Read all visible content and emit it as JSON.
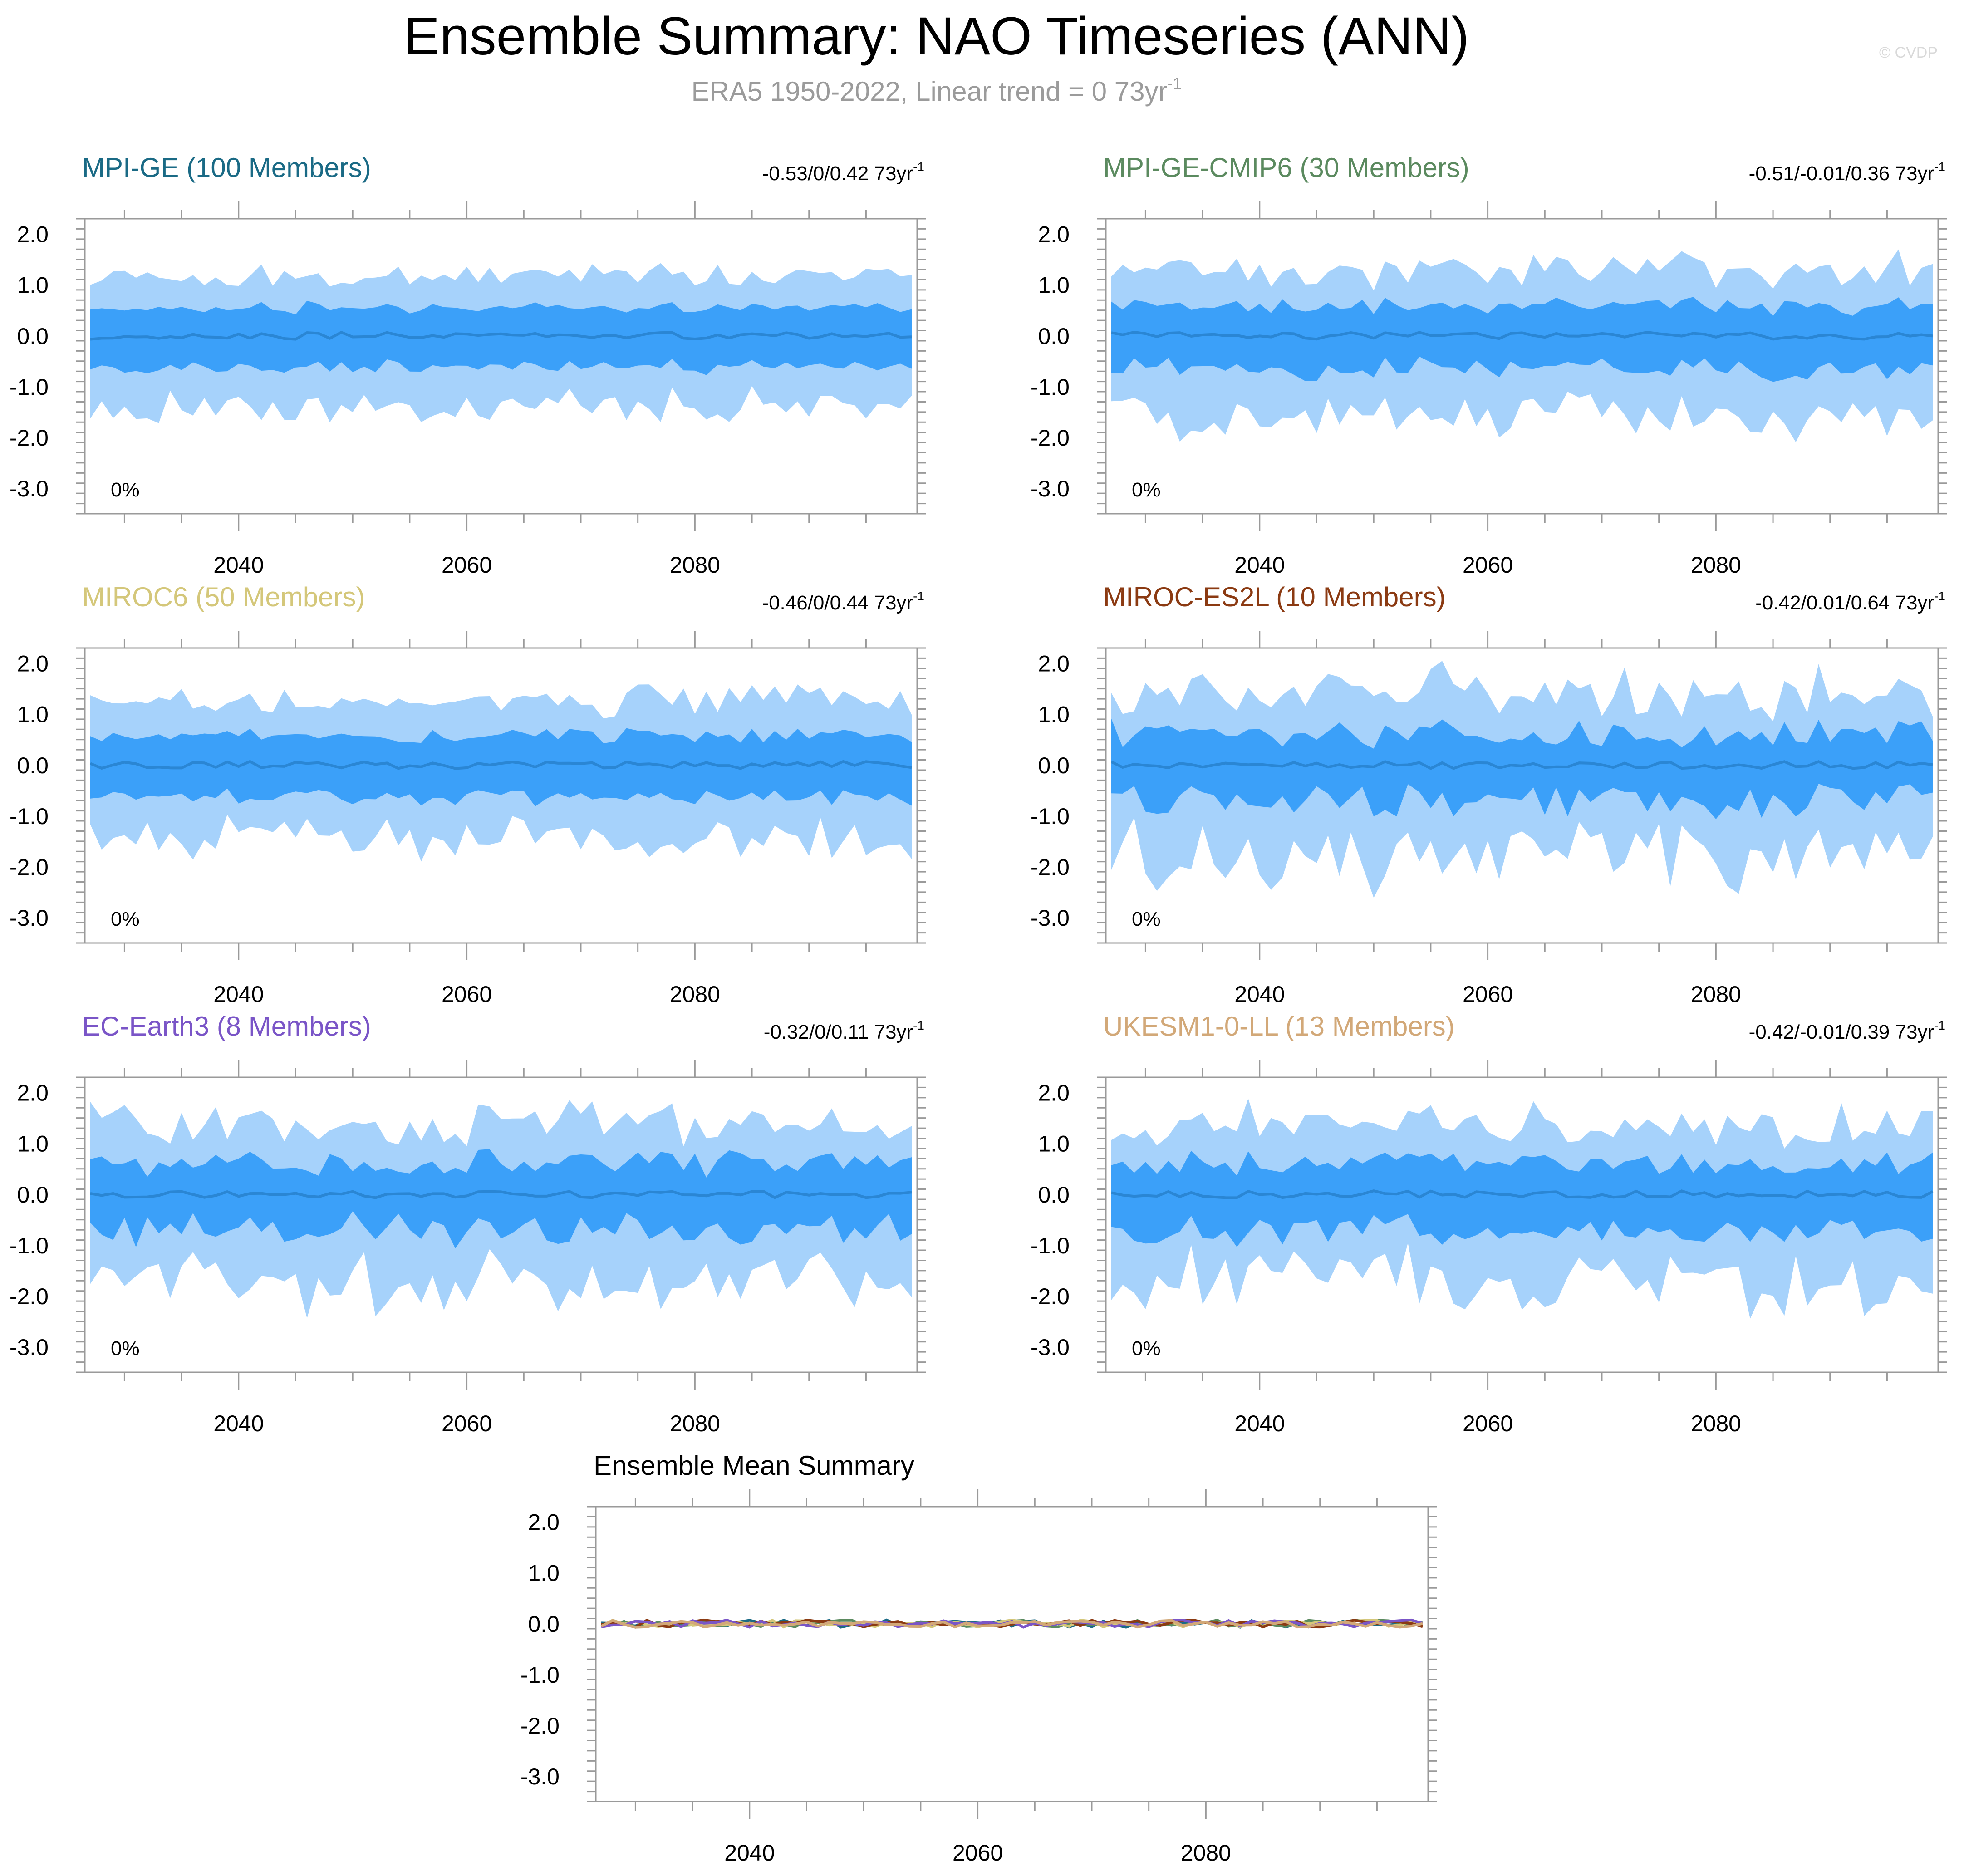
{
  "page": {
    "title": "Ensemble Summary: NAO Timeseries (ANN)",
    "subtitle": "ERA5 1950-2022, Linear trend = 0 73yr",
    "subtitle_sup": "-1",
    "watermark": "© CVDP"
  },
  "chart_data": [
    {
      "type": "area",
      "title": "MPI-GE (100 Members)",
      "title_color": "#1a6a85",
      "trend_text": "-0.53/0/0.42 73yr",
      "trend_sup": "-1",
      "percent_label": "0%",
      "members": 100,
      "x_start": 2027,
      "x_end": 2099,
      "xticks": [
        "2040",
        "2060",
        "2080"
      ],
      "yticks": [
        "2.0",
        "1.0",
        "0.0",
        "-1.0",
        "-2.0",
        "-3.0"
      ],
      "ylim": [
        -3.5,
        2.3
      ],
      "xlabel": "",
      "ylabel": "",
      "spread": 1.0,
      "volatility": 0.18,
      "seed": 3
    },
    {
      "type": "area",
      "title": "MPI-GE-CMIP6 (30 Members)",
      "title_color": "#5b8a5f",
      "trend_text": "-0.51/-0.01/0.36 73yr",
      "trend_sup": "-1",
      "percent_label": "0%",
      "members": 30,
      "x_start": 2027,
      "x_end": 2099,
      "xticks": [
        "2040",
        "2060",
        "2080"
      ],
      "yticks": [
        "2.0",
        "1.0",
        "0.0",
        "-1.0",
        "-2.0",
        "-3.0"
      ],
      "ylim": [
        -3.5,
        2.3
      ],
      "xlabel": "",
      "ylabel": "",
      "spread": 1.05,
      "volatility": 0.32,
      "seed": 11
    },
    {
      "type": "area",
      "title": "MIROC6 (50 Members)",
      "title_color": "#d4c77a",
      "trend_text": "-0.46/0/0.44 73yr",
      "trend_sup": "-1",
      "percent_label": "0%",
      "members": 50,
      "x_start": 2027,
      "x_end": 2099,
      "xticks": [
        "2040",
        "2060",
        "2080"
      ],
      "yticks": [
        "2.0",
        "1.0",
        "0.0",
        "-1.0",
        "-2.0",
        "-3.0"
      ],
      "ylim": [
        -3.5,
        2.3
      ],
      "xlabel": "",
      "ylabel": "",
      "spread": 1.05,
      "volatility": 0.25,
      "seed": 23
    },
    {
      "type": "area",
      "title": "MIROC-ES2L (10 Members)",
      "title_color": "#8b3a12",
      "trend_text": "-0.42/0.01/0.64 73yr",
      "trend_sup": "-1",
      "percent_label": "0%",
      "members": 10,
      "x_start": 2027,
      "x_end": 2099,
      "xticks": [
        "2040",
        "2060",
        "2080"
      ],
      "yticks": [
        "2.0",
        "1.0",
        "0.0",
        "-1.0",
        "-2.0",
        "-3.0"
      ],
      "ylim": [
        -3.5,
        2.3
      ],
      "xlabel": "",
      "ylabel": "",
      "spread": 1.1,
      "volatility": 0.55,
      "seed": 37
    },
    {
      "type": "area",
      "title": "EC-Earth3 (8 Members)",
      "title_color": "#7a55c7",
      "trend_text": "-0.32/0/0.11 73yr",
      "trend_sup": "-1",
      "percent_label": "0%",
      "members": 8,
      "x_start": 2027,
      "x_end": 2099,
      "xticks": [
        "2040",
        "2060",
        "2080"
      ],
      "yticks": [
        "2.0",
        "1.0",
        "0.0",
        "-1.0",
        "-2.0",
        "-3.0"
      ],
      "ylim": [
        -3.5,
        2.3
      ],
      "xlabel": "",
      "ylabel": "",
      "spread": 1.1,
      "volatility": 0.55,
      "seed": 53
    },
    {
      "type": "area",
      "title": "UKESM1-0-LL (13 Members)",
      "title_color": "#d2a878",
      "trend_text": "-0.42/-0.01/0.39 73yr",
      "trend_sup": "-1",
      "percent_label": "0%",
      "members": 13,
      "x_start": 2027,
      "x_end": 2099,
      "xticks": [
        "2040",
        "2060",
        "2080"
      ],
      "yticks": [
        "2.0",
        "1.0",
        "0.0",
        "-1.0",
        "-2.0",
        "-3.0"
      ],
      "ylim": [
        -3.5,
        2.3
      ],
      "xlabel": "",
      "ylabel": "",
      "spread": 1.15,
      "volatility": 0.45,
      "seed": 71
    },
    {
      "type": "line",
      "title": "Ensemble Mean Summary",
      "x_start": 2027,
      "x_end": 2099,
      "xticks": [
        "2040",
        "2060",
        "2080"
      ],
      "yticks": [
        "2.0",
        "1.0",
        "0.0",
        "-1.0",
        "-2.0",
        "-3.0"
      ],
      "ylim": [
        -3.5,
        2.3
      ],
      "xlabel": "",
      "ylabel": "",
      "series": [
        {
          "name": "MPI-GE",
          "color": "#1a6a85",
          "seed": 3
        },
        {
          "name": "MPI-GE-CMIP6",
          "color": "#5b8a5f",
          "seed": 11
        },
        {
          "name": "MIROC6",
          "color": "#d4c77a",
          "seed": 23
        },
        {
          "name": "MIROC-ES2L",
          "color": "#8b3a12",
          "seed": 37
        },
        {
          "name": "EC-Earth3",
          "color": "#7a55c7",
          "seed": 53
        },
        {
          "name": "UKESM1-0-LL",
          "color": "#d2a878",
          "seed": 71
        }
      ]
    }
  ],
  "colors": {
    "band_outer": "#a6d2fb",
    "band_inner": "#3ba0f9",
    "mean_line": "#2a86d4",
    "axis": "#9a9a9a",
    "subtitle": "#9b9b9b",
    "watermark": "#d9d9d9"
  }
}
